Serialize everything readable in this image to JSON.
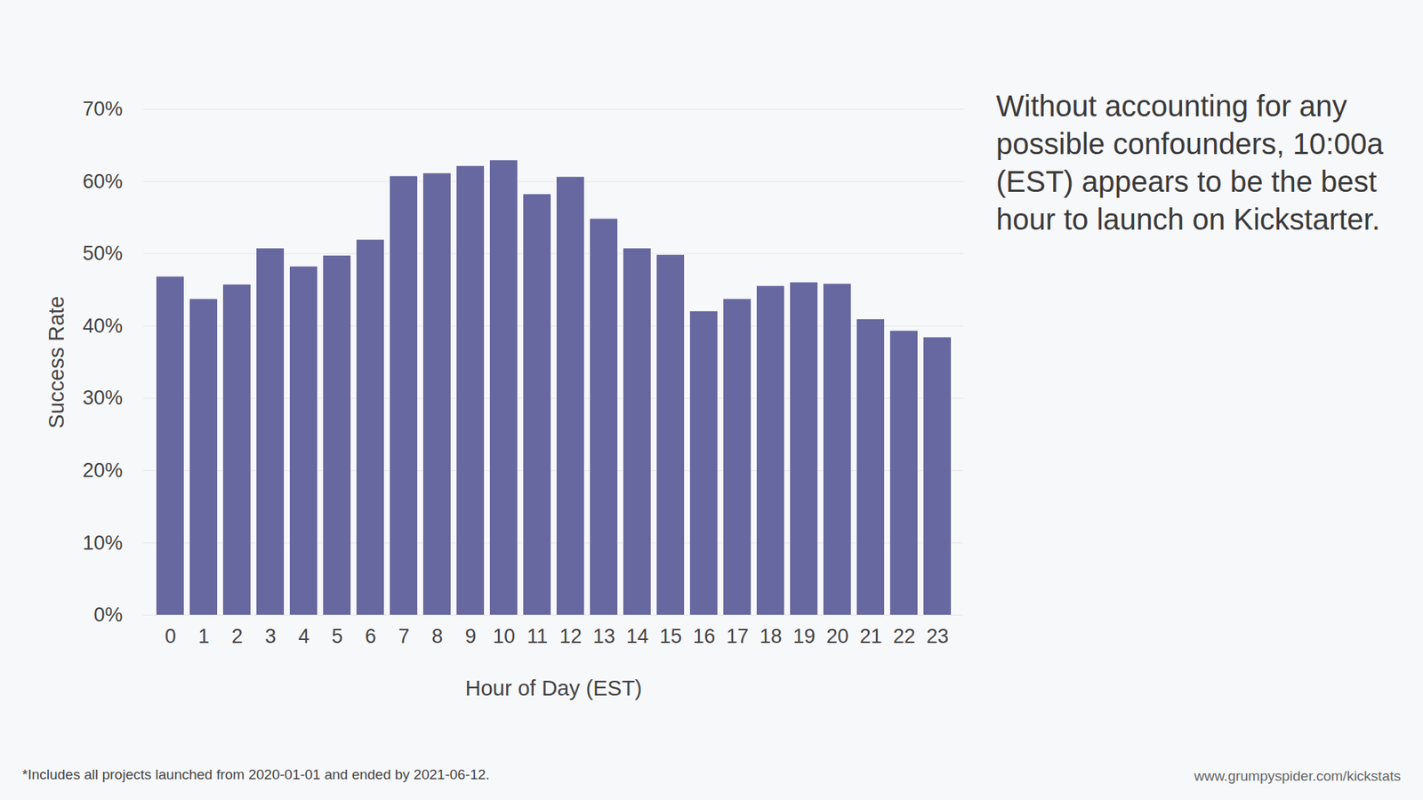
{
  "chart_data": {
    "type": "bar",
    "categories": [
      "0",
      "1",
      "2",
      "3",
      "4",
      "5",
      "6",
      "7",
      "8",
      "9",
      "10",
      "11",
      "12",
      "13",
      "14",
      "15",
      "16",
      "17",
      "18",
      "19",
      "20",
      "21",
      "22",
      "23"
    ],
    "values": [
      46.8,
      43.7,
      45.7,
      50.7,
      48.2,
      49.7,
      51.9,
      60.7,
      61.1,
      62.1,
      62.9,
      58.2,
      60.6,
      54.8,
      50.7,
      49.8,
      42.0,
      43.7,
      45.5,
      46.0,
      45.8,
      40.9,
      39.3,
      38.4
    ],
    "color": "#6868a0",
    "xlabel": "Hour of Day (EST)",
    "ylabel": "Success Rate",
    "ylim": [
      0,
      70
    ],
    "yticks": [
      {
        "value": 0,
        "label": "0%"
      },
      {
        "value": 10,
        "label": "10%"
      },
      {
        "value": 20,
        "label": "20%"
      },
      {
        "value": 30,
        "label": "30%"
      },
      {
        "value": 40,
        "label": "40%"
      },
      {
        "value": 50,
        "label": "50%"
      },
      {
        "value": 60,
        "label": "60%"
      },
      {
        "value": 70,
        "label": "70%"
      }
    ],
    "grid": true,
    "annotation": "Without accounting for any possible confounders, 10:00a (EST) appears to be the best hour to launch on Kickstarter.",
    "footnote": "*Includes all projects launched from 2020-01-01 and ended by 2021-06-12.",
    "source": "www.grumpyspider.com/kickstats"
  }
}
